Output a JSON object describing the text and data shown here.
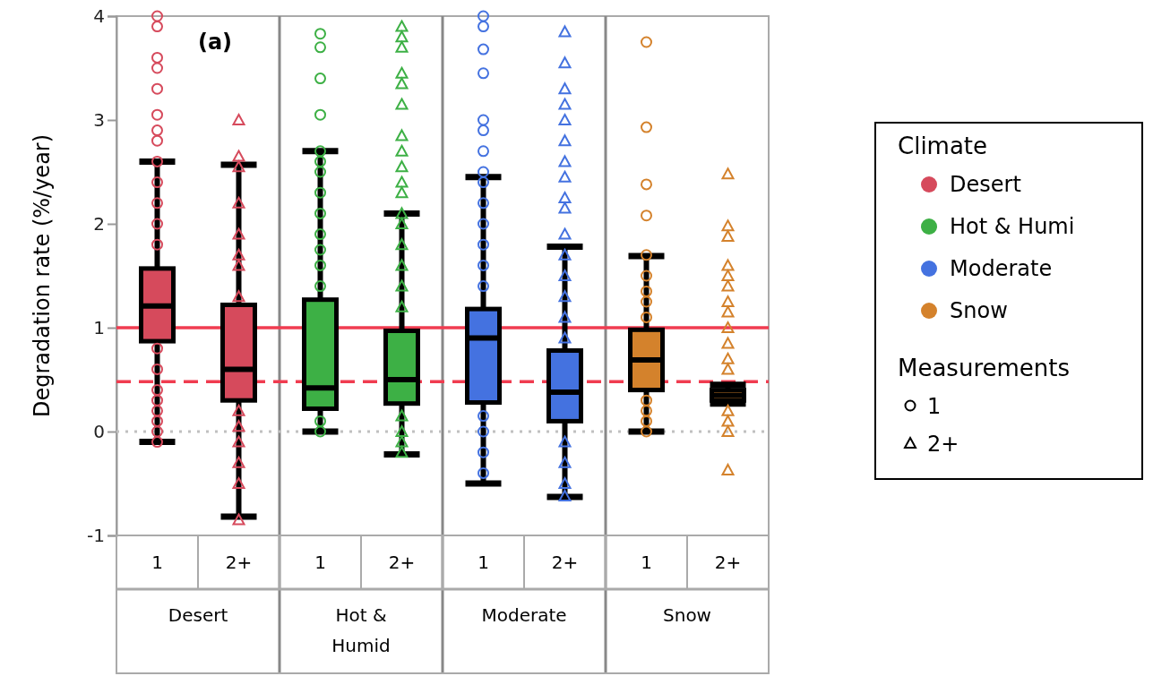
{
  "chart_data": {
    "type": "box",
    "ylabel": "Degradation rate (%/year)",
    "legend_title": "Climate",
    "legend": "right",
    "grid": false,
    "categories": [
      "1",
      "2+",
      "1",
      "2+",
      "1",
      "2+",
      "1",
      "2+"
    ],
    "ylim": [
      -1,
      4
    ],
    "yticks": [
      -1,
      0,
      1,
      2,
      3,
      4
    ],
    "annotations": [
      "(a)",
      "Desert",
      "Hot & Humid",
      "Moderate",
      "Snow",
      "Measurements"
    ],
    "ref_lines": [
      {
        "axis": "y",
        "value": 1,
        "color": "#f03c50",
        "line_style": "solid"
      },
      {
        "axis": "y",
        "value": 0.48,
        "color": "#f03c50",
        "line_style": "dashed"
      },
      {
        "axis": "y",
        "value": 0,
        "color": "#c0c0c0",
        "line_style": "dotted"
      }
    ],
    "series": [
      {
        "name": "Desert",
        "color": "#d64a5c",
        "marker": "circle",
        "boxes": [
          {
            "low": -0.1,
            "q1": 0.87,
            "median": 1.21,
            "q3": 1.57,
            "high": 2.6,
            "outliers": [
              4.0,
              3.9,
              3.6,
              3.5,
              3.3,
              3.05,
              2.9,
              2.8,
              2.6,
              2.4,
              2.2,
              2.0,
              1.8,
              0.8,
              0.6,
              0.4,
              0.3,
              0.2,
              0.1,
              0,
              -0.1
            ]
          },
          null,
          null,
          null,
          null,
          null,
          null,
          null
        ]
      },
      {
        "color": "#d64a5c",
        "marker": "triangle",
        "boxes": [
          null,
          {
            "low": -0.82,
            "q1": 0.3,
            "median": 0.6,
            "q3": 1.22,
            "high": 2.57,
            "outliers": [
              3.0,
              2.65,
              2.55,
              2.2,
              1.9,
              1.7,
              1.6,
              1.3,
              0.2,
              0.05,
              -0.1,
              -0.3,
              -0.5,
              -0.85
            ]
          },
          null,
          null,
          null,
          null,
          null,
          null
        ]
      },
      {
        "name": "Hot & Humi",
        "color": "#3db045",
        "marker": "circle",
        "boxes": [
          null,
          null,
          {
            "low": 0,
            "q1": 0.22,
            "median": 0.42,
            "q3": 1.27,
            "high": 2.7,
            "outliers": [
              3.83,
              3.7,
              3.4,
              3.05,
              2.7,
              2.6,
              2.5,
              2.3,
              2.1,
              1.9,
              1.75,
              1.6,
              1.4,
              0.1,
              0.0
            ]
          },
          null,
          null,
          null,
          null,
          null
        ]
      },
      {
        "color": "#3db045",
        "marker": "triangle",
        "boxes": [
          null,
          null,
          null,
          {
            "low": -0.22,
            "q1": 0.27,
            "median": 0.5,
            "q3": 0.97,
            "high": 2.1,
            "outliers": [
              3.9,
              3.8,
              3.7,
              3.45,
              3.35,
              3.15,
              2.85,
              2.7,
              2.55,
              2.4,
              2.3,
              2.1,
              2.0,
              1.8,
              1.6,
              1.4,
              1.2,
              0.15,
              0.0,
              -0.1,
              -0.2
            ]
          },
          null,
          null,
          null,
          null
        ]
      },
      {
        "name": "Moderate",
        "color": "#4472e0",
        "marker": "circle",
        "boxes": [
          null,
          null,
          null,
          null,
          {
            "low": -0.5,
            "q1": 0.28,
            "median": 0.9,
            "q3": 1.18,
            "high": 2.45,
            "outliers": [
              4.0,
              3.9,
              3.68,
              3.45,
              3.0,
              2.9,
              2.7,
              2.5,
              2.4,
              2.2,
              2.0,
              1.8,
              1.6,
              1.4,
              0.15,
              0.0,
              -0.2,
              -0.4
            ]
          },
          null,
          null,
          null
        ]
      },
      {
        "color": "#4472e0",
        "marker": "triangle",
        "boxes": [
          null,
          null,
          null,
          null,
          null,
          {
            "low": -0.63,
            "q1": 0.1,
            "median": 0.38,
            "q3": 0.78,
            "high": 1.78,
            "outliers": [
              3.85,
              3.55,
              3.3,
              3.15,
              3.0,
              2.8,
              2.6,
              2.45,
              2.25,
              2.15,
              1.9,
              1.7,
              1.5,
              1.3,
              1.1,
              0.9,
              -0.1,
              -0.3,
              -0.5,
              -0.62
            ]
          },
          null,
          null
        ]
      },
      {
        "name": "Snow",
        "color": "#d4822c",
        "marker": "circle",
        "boxes": [
          null,
          null,
          null,
          null,
          null,
          null,
          {
            "low": 0,
            "q1": 0.4,
            "median": 0.69,
            "q3": 0.98,
            "high": 1.69,
            "outliers": [
              3.75,
              2.93,
              2.38,
              2.08,
              1.7,
              1.5,
              1.35,
              1.25,
              1.1,
              0.3,
              0.2,
              0.1,
              0.0
            ]
          },
          null
        ]
      },
      {
        "color": "#d4822c",
        "marker": "triangle",
        "boxes": [
          null,
          null,
          null,
          null,
          null,
          null,
          null,
          {
            "low": 0.27,
            "q1": 0.3,
            "median": 0.35,
            "q3": 0.4,
            "high": 0.45,
            "outliers": [
              2.48,
              1.98,
              1.88,
              1.6,
              1.5,
              1.4,
              1.25,
              1.15,
              1.0,
              0.85,
              0.7,
              0.6,
              0.2,
              0.1,
              0,
              -0.37
            ]
          }
        ]
      }
    ]
  }
}
